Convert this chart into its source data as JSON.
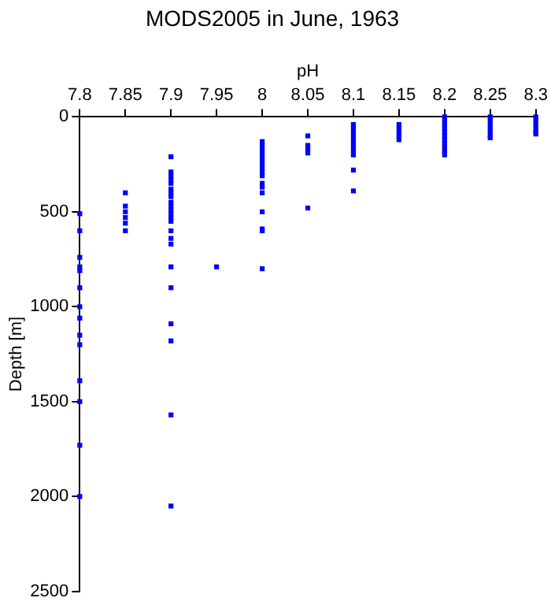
{
  "chart_data": {
    "type": "scatter",
    "title": "MODS2005 in June, 1963",
    "xlabel": "pH",
    "ylabel": "Depth [m]",
    "xlim": [
      7.8,
      8.3
    ],
    "xticks": [
      7.8,
      7.85,
      7.9,
      7.95,
      8,
      8.05,
      8.1,
      8.15,
      8.2,
      8.25,
      8.3
    ],
    "ylim": [
      2500,
      0
    ],
    "yticks": [
      0,
      500,
      1000,
      1500,
      2000,
      2500
    ],
    "grid": false,
    "legend": false,
    "marker": "square",
    "series": [
      {
        "color": "#0000ff",
        "x": [
          7.8,
          7.8,
          7.8,
          7.8,
          7.8,
          7.8,
          7.8,
          7.8,
          7.8,
          7.8,
          7.8,
          7.8,
          7.8,
          7.8,
          7.85,
          7.85,
          7.85,
          7.85,
          7.85,
          7.85,
          7.9,
          7.9,
          7.9,
          7.9,
          7.9,
          7.9,
          7.9,
          7.9,
          7.9,
          7.9,
          7.9,
          7.9,
          7.9,
          7.9,
          7.9,
          7.9,
          7.9,
          7.9,
          7.9,
          7.9,
          7.9,
          7.9,
          7.9,
          7.95,
          8,
          8,
          8,
          8,
          8,
          8,
          8,
          8,
          8,
          8,
          8,
          8,
          8,
          8,
          8,
          8,
          8,
          8.05,
          8.05,
          8.05,
          8.05,
          8.05,
          8.1,
          8.1,
          8.1,
          8.1,
          8.1,
          8.1,
          8.1,
          8.1,
          8.1,
          8.1,
          8.1,
          8.15,
          8.15,
          8.15,
          8.15,
          8.15,
          8.2,
          8.2,
          8.2,
          8.2,
          8.2,
          8.2,
          8.2,
          8.2,
          8.2,
          8.2,
          8.2,
          8.25,
          8.25,
          8.25,
          8.25,
          8.25,
          8.25,
          8.25,
          8.3,
          8.3,
          8.3,
          8.3,
          8.3,
          8.3
        ],
        "values": [
          510,
          600,
          740,
          790,
          810,
          900,
          1000,
          1060,
          1150,
          1200,
          1390,
          1500,
          1730,
          2000,
          400,
          470,
          500,
          530,
          560,
          600,
          210,
          290,
          310,
          330,
          350,
          380,
          400,
          420,
          450,
          470,
          490,
          510,
          530,
          550,
          600,
          640,
          670,
          790,
          900,
          1090,
          1180,
          1570,
          2050,
          790,
          130,
          150,
          170,
          190,
          210,
          230,
          250,
          270,
          290,
          310,
          350,
          370,
          400,
          500,
          590,
          600,
          800,
          100,
          150,
          170,
          190,
          480,
          40,
          60,
          80,
          100,
          120,
          140,
          160,
          180,
          200,
          280,
          390,
          40,
          60,
          80,
          100,
          120,
          0,
          20,
          40,
          60,
          80,
          100,
          120,
          140,
          160,
          180,
          200,
          0,
          20,
          40,
          60,
          80,
          100,
          110,
          0,
          20,
          40,
          60,
          80,
          90
        ]
      }
    ]
  }
}
